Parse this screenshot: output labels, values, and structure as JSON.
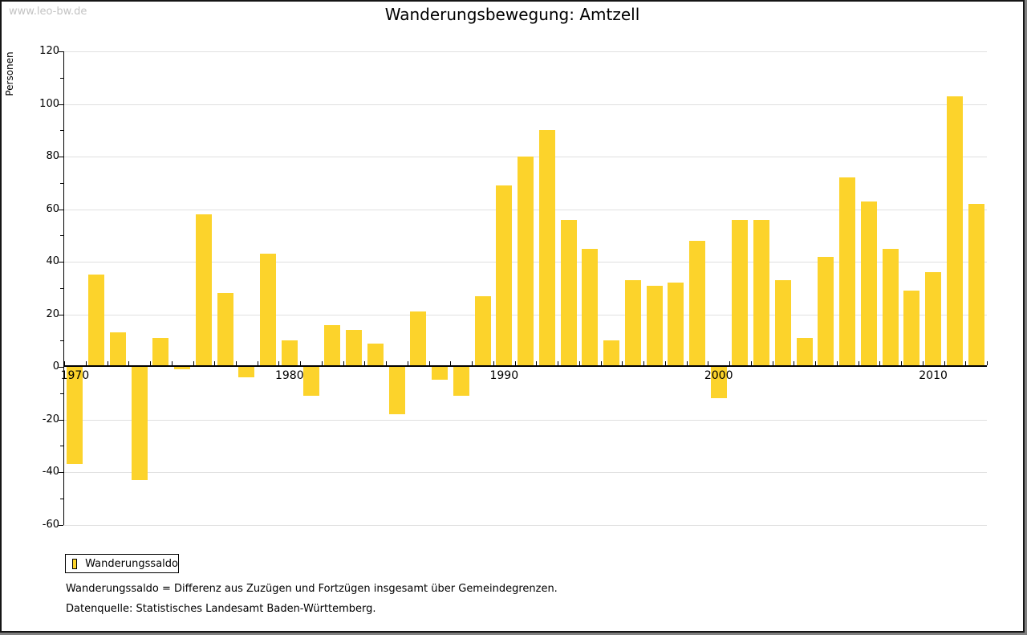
{
  "watermark": "www.leo-bw.de",
  "header": {
    "title": "Wanderungsbewegung: Amtzell"
  },
  "legend": {
    "label": "Wanderungssaldo"
  },
  "footnotes": [
    "Wanderungssaldo = Differenz aus Zuzügen und Fortzügen insgesamt über Gemeindegrenzen.",
    "Datenquelle: Statistisches Landesamt Baden-Württemberg."
  ],
  "colors": {
    "bar": "#fcd32b",
    "grid": "#e0e0e0",
    "axis": "#000000",
    "watermark": "#c3c3c3",
    "frame_shadow": "#808080"
  },
  "chart_data": {
    "type": "bar",
    "title": "Wanderungsbewegung: Amtzell",
    "xlabel": "",
    "ylabel": "Personen",
    "series_name": "Wanderungssaldo",
    "ylim": [
      -60,
      120
    ],
    "ytick_step": 20,
    "ytick_minor_step": 10,
    "grid": true,
    "legend_position": "bottom-left",
    "xticks": [
      1970,
      1980,
      1990,
      2000,
      2010
    ],
    "years": [
      1970,
      1971,
      1972,
      1973,
      1974,
      1975,
      1976,
      1977,
      1978,
      1979,
      1980,
      1981,
      1982,
      1983,
      1984,
      1985,
      1986,
      1987,
      1988,
      1989,
      1990,
      1991,
      1992,
      1993,
      1994,
      1995,
      1996,
      1997,
      1998,
      1999,
      2000,
      2001,
      2002,
      2003,
      2004,
      2005,
      2006,
      2007,
      2008,
      2009,
      2010,
      2011,
      2012
    ],
    "values": [
      -37,
      35,
      13,
      -43,
      11,
      -1,
      58,
      28,
      -4,
      43,
      10,
      -11,
      16,
      14,
      9,
      -18,
      21,
      -5,
      -11,
      27,
      69,
      80,
      90,
      56,
      45,
      10,
      33,
      31,
      32,
      48,
      -12,
      56,
      56,
      33,
      11,
      42,
      72,
      63,
      45,
      29,
      36,
      103,
      62
    ]
  }
}
